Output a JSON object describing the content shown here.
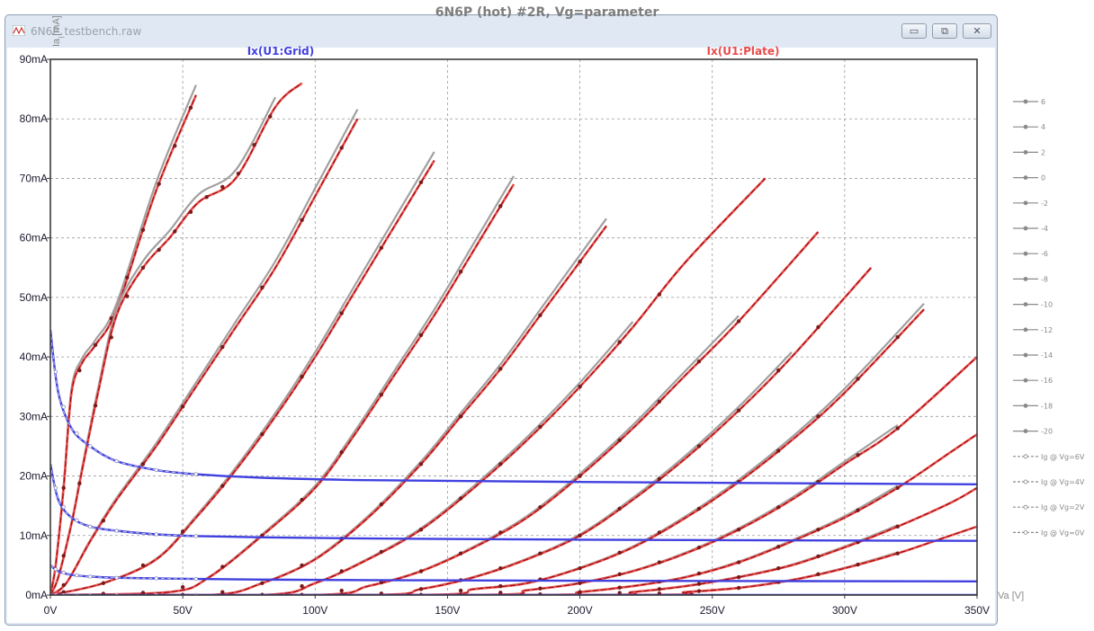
{
  "window": {
    "file_title": "6N6P_testbench.raw",
    "buttons": {
      "minimize": "▭",
      "restore": "⧉",
      "close": "✕"
    }
  },
  "chart_data": {
    "type": "line",
    "title": "6N6P (hot) #2R, Vg=parameter",
    "xlabel": "Va [V]",
    "ylabel": "Ia [mA]",
    "xlim": [
      0,
      350
    ],
    "ylim": [
      0,
      90
    ],
    "x_ticks": [
      "0V",
      "50V",
      "100V",
      "150V",
      "200V",
      "250V",
      "300V",
      "350V"
    ],
    "y_ticks": [
      "0mA",
      "10mA",
      "20mA",
      "30mA",
      "40mA",
      "50mA",
      "60mA",
      "70mA",
      "80mA",
      "90mA"
    ],
    "grid": true,
    "trace_labels": {
      "grid": "Ix(U1:Grid)",
      "plate": "Ix(U1:Plate)"
    },
    "colors": {
      "plate": "#e84c4c",
      "plate_dark": "#8b0000",
      "grid": "#4040e0",
      "measured": "#a0a0a0",
      "frame": "#3a3a3a"
    },
    "plate_series": [
      {
        "vg": 6,
        "x": [
          0,
          2,
          5,
          8,
          12,
          17,
          25,
          40,
          55
        ],
        "y": [
          0,
          5,
          18,
          34,
          39,
          42,
          48,
          68,
          84
        ],
        "meas_end": 55
      },
      {
        "vg": 4,
        "x": [
          0,
          3,
          8,
          12,
          18,
          25,
          35,
          45,
          56,
          70,
          85,
          95
        ],
        "y": [
          0,
          3,
          12,
          21,
          34,
          47,
          55,
          60,
          66,
          70,
          82,
          86
        ],
        "meas_end": 85
      },
      {
        "vg": 2,
        "x": [
          0,
          6,
          15,
          25,
          40,
          55,
          70,
          85,
          100,
          116
        ],
        "y": [
          0,
          2,
          9,
          16,
          25,
          35,
          45,
          55,
          67,
          80
        ],
        "meas_end": 116
      },
      {
        "vg": 0,
        "x": [
          0,
          20,
          40,
          55,
          70,
          85,
          100,
          115,
          130,
          145
        ],
        "y": [
          0,
          2,
          6,
          13,
          21,
          30,
          40,
          51,
          62,
          73
        ],
        "meas_end": 145
      },
      {
        "vg": -2,
        "x": [
          0,
          45,
          60,
          80,
          100,
          115,
          130,
          145,
          160,
          175
        ],
        "y": [
          0,
          0.5,
          3,
          10,
          18,
          27,
          37,
          47,
          58,
          69
        ],
        "meas_end": 175
      },
      {
        "vg": -4,
        "x": [
          0,
          60,
          80,
          100,
          120,
          140,
          155,
          170,
          185,
          200,
          210
        ],
        "y": [
          0,
          0,
          2,
          6,
          13,
          22,
          30,
          38,
          47,
          56,
          62
        ],
        "meas_end": 210
      },
      {
        "vg": -6,
        "x": [
          0,
          80,
          100,
          120,
          140,
          160,
          180,
          200,
          220,
          240,
          270
        ],
        "y": [
          0,
          0,
          2,
          6,
          11,
          18,
          26,
          35,
          45,
          56,
          70
        ],
        "meas_end": 230
      },
      {
        "vg": -8,
        "x": [
          0,
          100,
          120,
          140,
          160,
          180,
          200,
          220,
          240,
          260,
          290
        ],
        "y": [
          0,
          0,
          1.5,
          4,
          8,
          13,
          20,
          28,
          37,
          46,
          61
        ],
        "meas_end": 270
      },
      {
        "vg": -10,
        "x": [
          0,
          120,
          140,
          160,
          180,
          200,
          220,
          240,
          260,
          280,
          310
        ],
        "y": [
          0,
          0,
          1,
          3,
          6,
          10,
          16,
          23,
          31,
          40,
          55
        ],
        "meas_end": 290
      },
      {
        "vg": -12,
        "x": [
          0,
          140,
          160,
          180,
          200,
          220,
          240,
          260,
          280,
          300,
          330
        ],
        "y": [
          0,
          0,
          1,
          2,
          4.5,
          8,
          13,
          19,
          26,
          34,
          48
        ],
        "meas_end": 330
      },
      {
        "vg": -14,
        "x": [
          0,
          160,
          180,
          200,
          220,
          240,
          260,
          280,
          300,
          320,
          350
        ],
        "y": [
          0,
          0,
          0.8,
          2,
          4,
          7,
          11,
          16,
          22,
          28,
          40
        ],
        "meas_end": 330
      },
      {
        "vg": -16,
        "x": [
          0,
          180,
          200,
          220,
          240,
          260,
          280,
          300,
          320,
          340,
          350
        ],
        "y": [
          0,
          0,
          0.5,
          1.5,
          3,
          5.5,
          9,
          13,
          18,
          24,
          27
        ],
        "meas_end": 330
      },
      {
        "vg": -18,
        "x": [
          0,
          200,
          220,
          240,
          260,
          280,
          300,
          320,
          340,
          350
        ],
        "y": [
          0,
          0,
          0.5,
          1.5,
          3,
          5,
          8,
          11.5,
          15.5,
          18
        ],
        "meas_end": 330
      },
      {
        "vg": -20,
        "x": [
          0,
          220,
          240,
          260,
          280,
          300,
          320,
          340,
          350
        ],
        "y": [
          0,
          0,
          0.5,
          1.2,
          2.5,
          4.5,
          7,
          10,
          11.5
        ],
        "meas_end": 330
      }
    ],
    "grid_series": [
      {
        "vg": 6,
        "x": [
          0,
          3,
          8,
          15,
          25,
          40,
          55,
          80,
          120,
          200,
          350
        ],
        "y": [
          44.5,
          34,
          28,
          25,
          22.5,
          21,
          20.3,
          19.7,
          19.3,
          19,
          18.6
        ]
      },
      {
        "vg": 4,
        "x": [
          0,
          3,
          8,
          15,
          25,
          40,
          55,
          80,
          120,
          200,
          350
        ],
        "y": [
          22,
          16,
          13,
          11.5,
          10.8,
          10.2,
          9.9,
          9.7,
          9.5,
          9.3,
          9.1
        ]
      },
      {
        "vg": 2,
        "x": [
          0,
          3,
          8,
          15,
          25,
          40,
          55,
          80,
          120,
          200,
          350
        ],
        "y": [
          5,
          4,
          3.4,
          3.1,
          2.9,
          2.8,
          2.7,
          2.6,
          2.5,
          2.4,
          2.3
        ]
      },
      {
        "vg": 0,
        "x": [
          0,
          350
        ],
        "y": [
          0,
          0
        ]
      }
    ],
    "legend": {
      "position": "right",
      "entries": [
        "6",
        "4",
        "2",
        "0",
        "-2",
        "-4",
        "-6",
        "-8",
        "-10",
        "-12",
        "-14",
        "-16",
        "-18",
        "-20",
        "Ig @ Vg=6V",
        "Ig @ Vg=4V",
        "Ig @ Vg=2V",
        "Ig @ Vg=0V"
      ]
    }
  }
}
